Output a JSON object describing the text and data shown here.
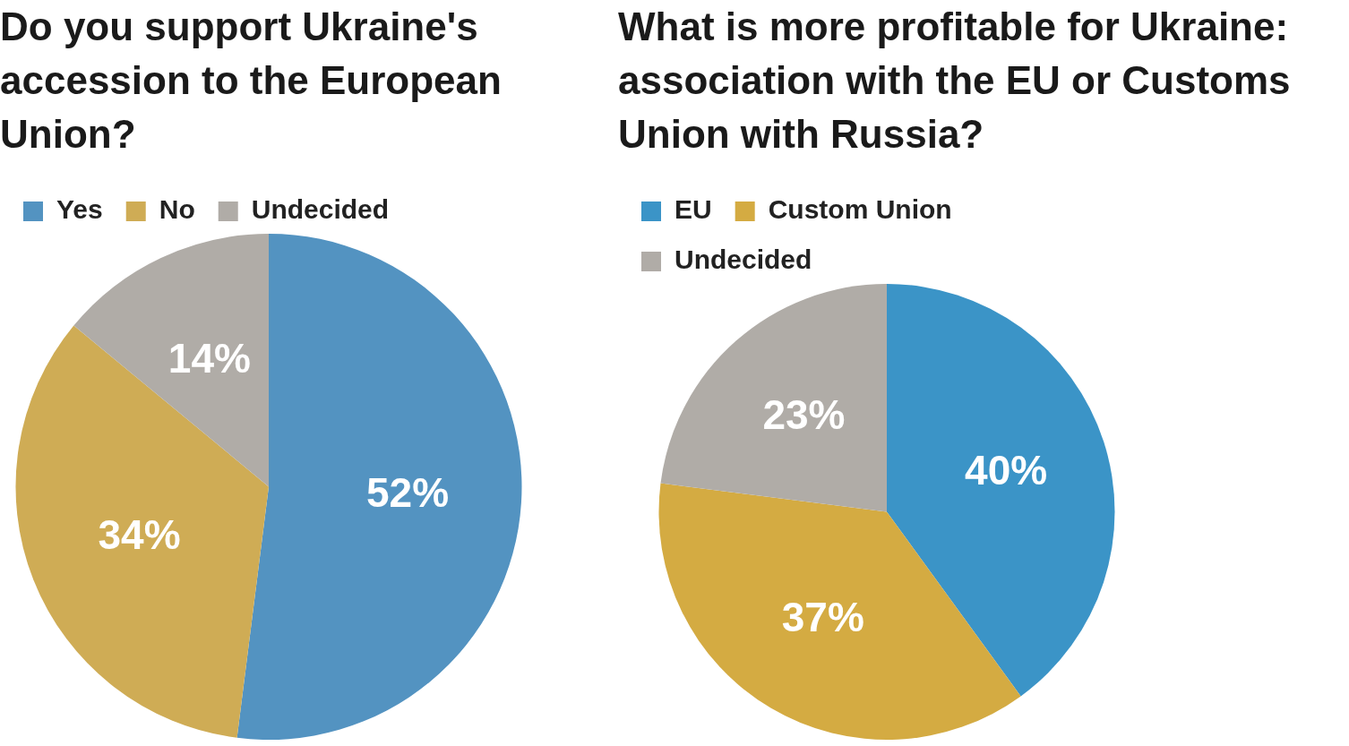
{
  "chart_data": [
    {
      "type": "pie",
      "title": "Do you support Ukraine's accession to the European Union?",
      "categories": [
        "Yes",
        "No",
        "Undecided"
      ],
      "values": [
        52,
        34,
        14
      ],
      "colors": [
        "#5393c1",
        "#cfac55",
        "#b0aca7"
      ],
      "value_labels": [
        "52%",
        "34%",
        "14%"
      ],
      "legend": "top left"
    },
    {
      "type": "pie",
      "title": "What is more profitable for Ukraine: association with the EU or Customs Union with Russia?",
      "categories": [
        "EU",
        "Custom Union",
        "Undecided"
      ],
      "values": [
        40,
        37,
        23
      ],
      "colors": [
        "#3b94c7",
        "#d4ab42",
        "#b0aca7"
      ],
      "value_labels": [
        "40%",
        "37%",
        "23%"
      ],
      "legend": "top left"
    }
  ]
}
